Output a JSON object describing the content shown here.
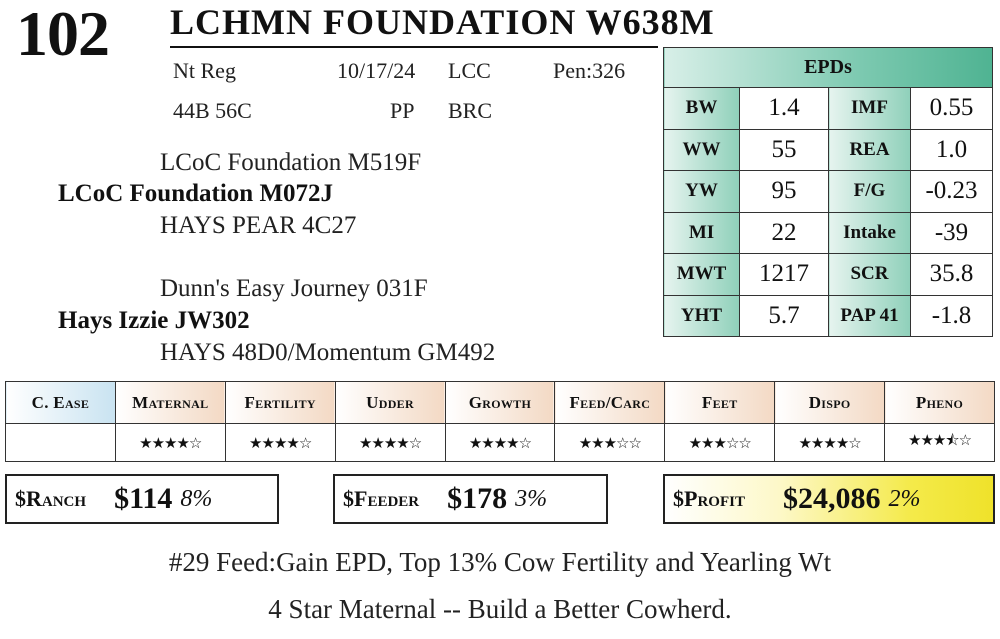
{
  "header": {
    "lot_number": "102",
    "name": "LCHMN FOUNDATION W638M"
  },
  "info": {
    "registration": "Nt Reg",
    "date": "10/17/24",
    "code1": "LCC",
    "pen": "Pen:326",
    "tattoo": "44B 56C",
    "polled": "PP",
    "code2": "BRC"
  },
  "pedigree": {
    "sire_sire": "LCoC Foundation M519F",
    "sire": "LCoC Foundation M072J",
    "sire_dam": "HAYS PEAR 4C27",
    "dam_sire": "Dunn's Easy Journey 031F",
    "dam": "Hays Izzie JW302",
    "dam_dam": "HAYS 48D0/Momentum GM492"
  },
  "epds": {
    "title": "EPDs",
    "rows": [
      {
        "l1": "BW",
        "v1": "1.4",
        "l2": "IMF",
        "v2": "0.55"
      },
      {
        "l1": "WW",
        "v1": "55",
        "l2": "REA",
        "v2": "1.0"
      },
      {
        "l1": "YW",
        "v1": "95",
        "l2": "F/G",
        "v2": "-0.23"
      },
      {
        "l1": "MI",
        "v1": "22",
        "l2": "Intake",
        "v2": "-39"
      },
      {
        "l1": "MWT",
        "v1": "1217",
        "l2": "SCR",
        "v2": "35.8"
      },
      {
        "l1": "YHT",
        "v1": "5.7",
        "l2": "PAP 41",
        "v2": "-1.8"
      }
    ]
  },
  "ratings": {
    "headers": [
      "C. Ease",
      "Maternal",
      "Fertility",
      "Udder",
      "Growth",
      "Feed/Carc",
      "Feet",
      "Dispo",
      "Pheno"
    ],
    "stars": [
      "",
      "★★★★☆",
      "★★★★☆",
      "★★★★☆",
      "★★★★☆",
      "★★★☆☆",
      "★★★☆☆",
      "★★★★☆",
      "★★★⯪☆"
    ],
    "star_counts": [
      null,
      4,
      4,
      4,
      4,
      3,
      3,
      4,
      3.5
    ]
  },
  "indexes": {
    "ranch": {
      "label": "$Ranch",
      "value": "$114",
      "pct": "8%"
    },
    "feeder": {
      "label": "$Feeder",
      "value": "$178",
      "pct": "3%"
    },
    "profit": {
      "label": "$Profit",
      "value": "$24,086",
      "pct": "2%"
    }
  },
  "comments": {
    "line1": "#29 Feed:Gain EPD, Top 13% Cow Fertility and Yearling Wt",
    "line2": "4 Star Maternal -- Build a Better Cowherd."
  },
  "colors": {
    "epd_accent": "#4fb392",
    "rating_header": "#f3d9c4",
    "cease_header": "#c9e3f1",
    "profit_highlight": "#efe22a"
  }
}
